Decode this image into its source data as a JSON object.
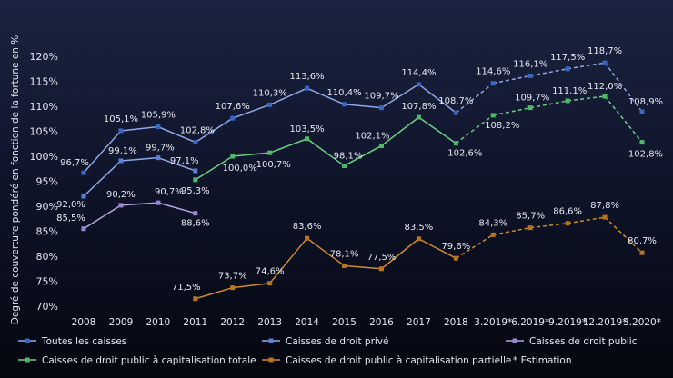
{
  "chart_data": {
    "type": "line",
    "title": "",
    "xlabel": "",
    "ylabel": "Degré de couverture pondéré en fonction de la fortune en %",
    "ylim": [
      70,
      120
    ],
    "yticks": [
      70,
      75,
      80,
      85,
      90,
      95,
      100,
      105,
      110,
      115,
      120
    ],
    "ytick_suffix": "%",
    "grid": false,
    "legend_placement": "bottom",
    "categories": [
      "2008",
      "2009",
      "2010",
      "2011",
      "2012",
      "2013",
      "2014",
      "2015",
      "2016",
      "2017",
      "2018",
      "3.2019*",
      "6.2019*",
      "9.2019*",
      "12.2019*",
      "3.2020*"
    ],
    "estimate_start_index": 10,
    "estimate_note": "* Estimation",
    "series": [
      {
        "name": "Toutes les caisses",
        "color": "#8ea9e8",
        "marker_color": "#3a66c4",
        "values": [
          96.7,
          105.1,
          105.9,
          102.8,
          107.6,
          110.3,
          113.6,
          110.4,
          109.7,
          114.4,
          108.7,
          114.6,
          116.1,
          117.5,
          118.7,
          108.9
        ],
        "labels": [
          "96,7%",
          "105,1%",
          "105,9%",
          "102,8%",
          "107,6%",
          "110,3%",
          "113,6%",
          "110,4%",
          "109,7%",
          "114,4%",
          "108,7%",
          "114,6%",
          "116,1%",
          "117,5%",
          "118,7%",
          "108,9%"
        ]
      },
      {
        "name": "Caisses de droit privé",
        "color": "#8ea9e8",
        "marker_color": "#5a7fd6",
        "values": [
          92.0,
          99.1,
          99.7,
          97.1,
          null,
          null,
          null,
          null,
          null,
          null,
          null,
          null,
          null,
          null,
          null,
          null
        ],
        "labels": [
          "92,0%",
          "99,1%",
          "99,7%",
          "97,1%"
        ]
      },
      {
        "name": "Caisses de droit public",
        "color": "#b7a6de",
        "marker_color": "#9a87cf",
        "values": [
          85.5,
          90.2,
          90.7,
          88.6,
          null,
          null,
          null,
          null,
          null,
          null,
          null,
          null,
          null,
          null,
          null,
          null
        ],
        "labels": [
          "85,5%",
          "90,2%",
          "90,7%",
          "88,6%"
        ]
      },
      {
        "name": "Caisses de droit public à capitalisation totale",
        "color": "#6dcf86",
        "marker_color": "#4fb96a",
        "values": [
          null,
          null,
          null,
          95.3,
          100.0,
          100.7,
          103.5,
          98.1,
          102.1,
          107.8,
          102.6,
          108.2,
          109.7,
          111.1,
          112.0,
          102.8
        ],
        "labels": [
          "",
          "",
          "",
          "95,3%",
          "100,0%",
          "100,7%",
          "103,5%",
          "98,1%",
          "102,1%",
          "107,8%",
          "102,6%",
          "108,2%",
          "109,7%",
          "111,1%",
          "112,0%",
          "102,8%"
        ]
      },
      {
        "name": "Caisses de droit public à capitalisation partielle",
        "color": "#d08a2c",
        "marker_color": "#b9741f",
        "values": [
          null,
          null,
          null,
          71.5,
          73.7,
          74.6,
          83.6,
          78.1,
          77.5,
          83.5,
          79.6,
          84.3,
          85.7,
          86.6,
          87.8,
          80.7
        ],
        "labels": [
          "",
          "",
          "",
          "71,5%",
          "73,7%",
          "74,6%",
          "83,6%",
          "78,1%",
          "77,5%",
          "83,5%",
          "79,6%",
          "84,3%",
          "85,7%",
          "86,6%",
          "87,8%",
          "80,7%"
        ]
      }
    ]
  }
}
